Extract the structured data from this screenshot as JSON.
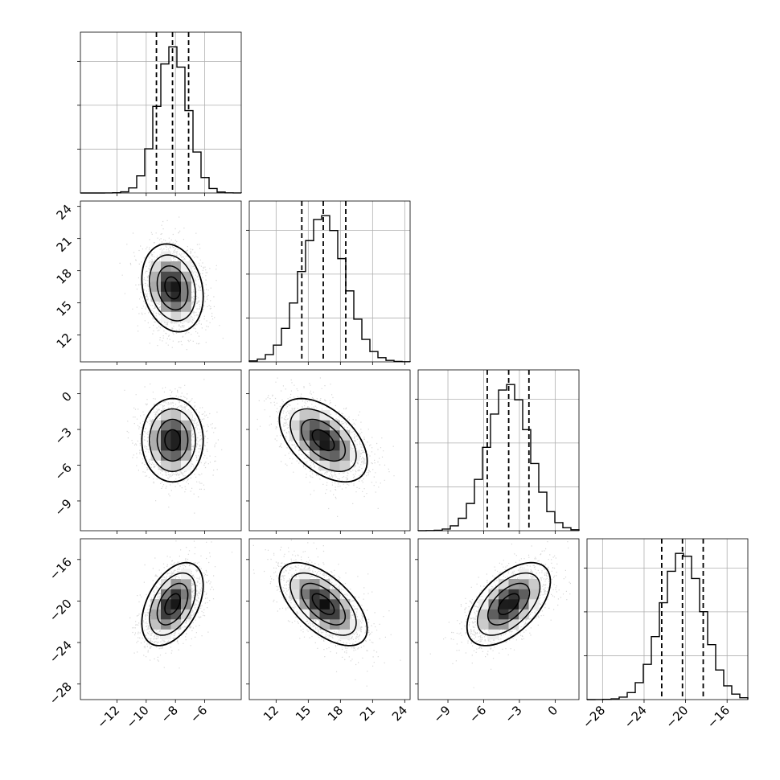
{
  "chart_data": {
    "type": "corner",
    "parameters": [
      {
        "range": [
          -14.5,
          -3.5
        ],
        "ticks": [
          -12,
          -10,
          -8,
          -6
        ],
        "tick_labels": [
          "−12",
          "−10",
          "−8",
          "−6"
        ],
        "quantiles": [
          -9.3,
          -8.2,
          -7.1
        ],
        "mean": -8.2,
        "sd": 1.05
      },
      {
        "range": [
          9.5,
          24.5
        ],
        "ticks": [
          12,
          15,
          18,
          21,
          24
        ],
        "tick_labels": [
          "12",
          "15",
          "18",
          "21",
          "24"
        ],
        "quantiles": [
          14.4,
          16.4,
          18.5
        ],
        "mean": 16.4,
        "sd": 2.05
      },
      {
        "range": [
          -11.5,
          2.0
        ],
        "ticks": [
          -9,
          -6,
          -3,
          0
        ],
        "tick_labels": [
          "−9",
          "−6",
          "−3",
          "0"
        ],
        "quantiles": [
          -5.7,
          -3.9,
          -2.2
        ],
        "mean": -3.9,
        "sd": 1.75
      },
      {
        "range": [
          -29.5,
          -14.0
        ],
        "ticks": [
          -28,
          -24,
          -20,
          -16
        ],
        "tick_labels": [
          "−28",
          "−24",
          "−20",
          "−16"
        ],
        "quantiles": [
          -22.3,
          -20.3,
          -18.3
        ],
        "mean": -20.3,
        "sd": 2.0
      }
    ],
    "correlations": [
      [
        1.0,
        -0.2,
        0.0,
        0.45
      ],
      [
        -0.2,
        1.0,
        -0.5,
        -0.6
      ],
      [
        0.0,
        -0.5,
        1.0,
        0.55
      ],
      [
        0.45,
        -0.6,
        0.55,
        1.0
      ]
    ],
    "histogram_bins": 20,
    "contour_levels_sigma": [
      0.5,
      1.0,
      1.5,
      2.0
    ],
    "grid": true,
    "colors": {
      "line": "#000000",
      "points": "#8c8c8c",
      "grid": "#b0b0b0",
      "background": "#ffffff"
    }
  }
}
